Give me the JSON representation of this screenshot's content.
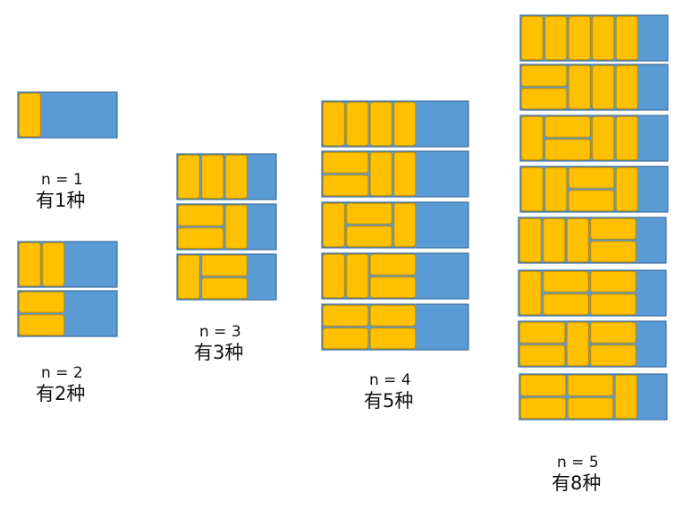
{
  "colors": {
    "board_fill": "#5B9BD5",
    "board_stroke": "#3E6F9E",
    "tile_fill": "#FFC000",
    "tile_stroke": "#BC8C00"
  },
  "groups": [
    {
      "id": "g1",
      "n_label": "n = 1",
      "count_label": "有1种",
      "n": 1,
      "ways": [
        [
          [
            0,
            0,
            1,
            2
          ]
        ]
      ]
    },
    {
      "id": "g2",
      "n_label": "n = 2",
      "count_label": "有2种",
      "n": 2,
      "ways": [
        [
          [
            0,
            0,
            1,
            2
          ],
          [
            1,
            0,
            1,
            2
          ]
        ],
        [
          [
            0,
            0,
            2,
            1
          ],
          [
            0,
            1,
            2,
            1
          ]
        ]
      ]
    },
    {
      "id": "g3",
      "n_label": "n = 3",
      "count_label": "有3种",
      "n": 3,
      "ways": [
        [
          [
            0,
            0,
            1,
            2
          ],
          [
            1,
            0,
            1,
            2
          ],
          [
            2,
            0,
            1,
            2
          ]
        ],
        [
          [
            0,
            0,
            2,
            1
          ],
          [
            0,
            1,
            2,
            1
          ],
          [
            2,
            0,
            1,
            2
          ]
        ],
        [
          [
            0,
            0,
            1,
            2
          ],
          [
            1,
            0,
            2,
            1
          ],
          [
            1,
            1,
            2,
            1
          ]
        ]
      ]
    },
    {
      "id": "g4",
      "n_label": "n = 4",
      "count_label": "有5种",
      "n": 4,
      "ways": [
        [
          [
            0,
            0,
            1,
            2
          ],
          [
            1,
            0,
            1,
            2
          ],
          [
            2,
            0,
            1,
            2
          ],
          [
            3,
            0,
            1,
            2
          ]
        ],
        [
          [
            0,
            0,
            2,
            1
          ],
          [
            0,
            1,
            2,
            1
          ],
          [
            2,
            0,
            1,
            2
          ],
          [
            3,
            0,
            1,
            2
          ]
        ],
        [
          [
            0,
            0,
            1,
            2
          ],
          [
            1,
            0,
            2,
            1
          ],
          [
            1,
            1,
            2,
            1
          ],
          [
            3,
            0,
            1,
            2
          ]
        ],
        [
          [
            0,
            0,
            1,
            2
          ],
          [
            1,
            0,
            1,
            2
          ],
          [
            2,
            0,
            2,
            1
          ],
          [
            2,
            1,
            2,
            1
          ]
        ],
        [
          [
            0,
            0,
            2,
            1
          ],
          [
            0,
            1,
            2,
            1
          ],
          [
            2,
            0,
            2,
            1
          ],
          [
            2,
            1,
            2,
            1
          ]
        ]
      ]
    },
    {
      "id": "g5",
      "n_label": "n = 5",
      "count_label": "有8种",
      "n": 5,
      "ways": [
        [
          [
            0,
            0,
            1,
            2
          ],
          [
            1,
            0,
            1,
            2
          ],
          [
            2,
            0,
            1,
            2
          ],
          [
            3,
            0,
            1,
            2
          ],
          [
            4,
            0,
            1,
            2
          ]
        ],
        [
          [
            0,
            0,
            2,
            1
          ],
          [
            0,
            1,
            2,
            1
          ],
          [
            2,
            0,
            1,
            2
          ],
          [
            3,
            0,
            1,
            2
          ],
          [
            4,
            0,
            1,
            2
          ]
        ],
        [
          [
            0,
            0,
            1,
            2
          ],
          [
            1,
            0,
            2,
            1
          ],
          [
            1,
            1,
            2,
            1
          ],
          [
            3,
            0,
            1,
            2
          ],
          [
            4,
            0,
            1,
            2
          ]
        ],
        [
          [
            0,
            0,
            1,
            2
          ],
          [
            1,
            0,
            1,
            2
          ],
          [
            2,
            0,
            2,
            1
          ],
          [
            2,
            1,
            2,
            1
          ],
          [
            4,
            0,
            1,
            2
          ]
        ],
        [
          [
            0,
            0,
            1,
            2
          ],
          [
            1,
            0,
            1,
            2
          ],
          [
            2,
            0,
            1,
            2
          ],
          [
            3,
            0,
            2,
            1
          ],
          [
            3,
            1,
            2,
            1
          ]
        ],
        [
          [
            0,
            0,
            1,
            2
          ],
          [
            1,
            0,
            2,
            1
          ],
          [
            1,
            1,
            2,
            1
          ],
          [
            3,
            0,
            2,
            1
          ],
          [
            3,
            1,
            2,
            1
          ]
        ],
        [
          [
            0,
            0,
            2,
            1
          ],
          [
            0,
            1,
            2,
            1
          ],
          [
            2,
            0,
            1,
            2
          ],
          [
            3,
            0,
            2,
            1
          ],
          [
            3,
            1,
            2,
            1
          ]
        ],
        [
          [
            0,
            0,
            2,
            1
          ],
          [
            0,
            1,
            2,
            1
          ],
          [
            2,
            0,
            2,
            1
          ],
          [
            2,
            1,
            2,
            1
          ],
          [
            4,
            0,
            1,
            2
          ]
        ]
      ]
    }
  ]
}
